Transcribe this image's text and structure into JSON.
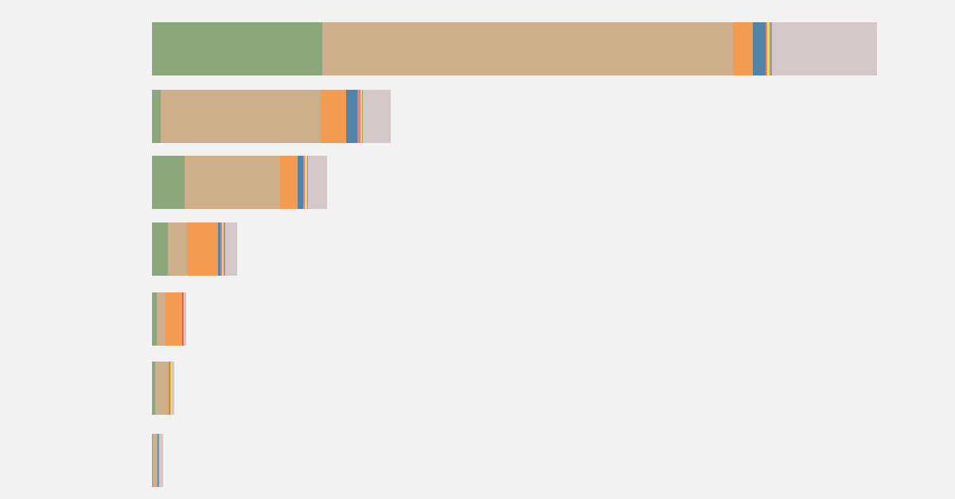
{
  "chart_data": {
    "type": "bar",
    "orientation": "horizontal",
    "stacked": true,
    "background": "#f2f2f2",
    "title": "",
    "xlabel": "",
    "ylabel": "",
    "grid": false,
    "legend": "none",
    "xlim": [
      0,
      915
    ],
    "series": [
      {
        "color": "#8ca77b",
        "values": [
          214,
          11,
          41,
          20,
          6,
          4,
          1
        ]
      },
      {
        "color": "#cdaf8b",
        "values": [
          516,
          201,
          120,
          24,
          11,
          16,
          5
        ]
      },
      {
        "color": "#f39b51",
        "values": [
          25,
          32,
          22,
          39,
          21,
          2,
          1
        ]
      },
      {
        "color": "#5284a8",
        "values": [
          16,
          14,
          7,
          3,
          1,
          1,
          1
        ]
      },
      {
        "color": "#e57f84",
        "values": [
          2,
          4,
          2,
          2,
          1,
          0,
          0
        ]
      },
      {
        "color": "#eadd55",
        "values": [
          3,
          2,
          3,
          2,
          0,
          2,
          0
        ]
      },
      {
        "color": "#a690bc",
        "values": [
          3,
          1,
          1,
          2,
          0,
          0,
          1
        ]
      },
      {
        "color": "#d5c8c8",
        "values": [
          132,
          35,
          24,
          15,
          3,
          3,
          5
        ]
      }
    ]
  }
}
